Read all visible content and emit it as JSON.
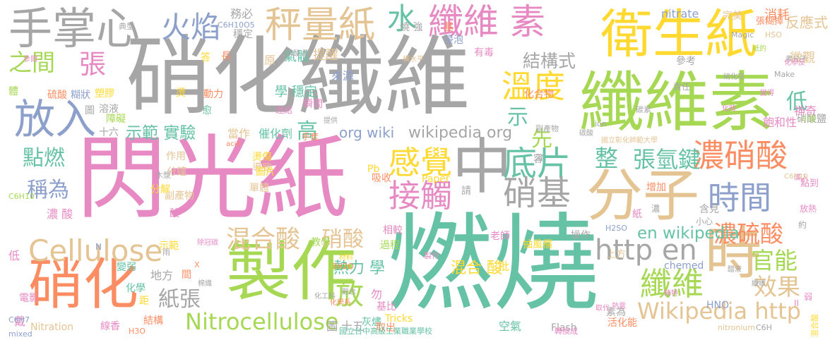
{
  "colors": {
    "gray": "#a6a6a6",
    "green": "#66c2a5",
    "orange": "#fc8d62",
    "blue": "#8da0cb",
    "pink": "#e78ac3",
    "lime": "#a6d854",
    "yellow": "#ffd92f",
    "tan": "#e5c494"
  },
  "words": [
    {
      "text": "閃光紙",
      "color": "pink"
    },
    {
      "text": "燃燒",
      "color": "green"
    },
    {
      "text": "硝化纖維",
      "color": "gray"
    },
    {
      "text": "纖維素",
      "color": "lime"
    },
    {
      "text": "製作",
      "color": "lime"
    },
    {
      "text": "分子",
      "color": "tan"
    },
    {
      "text": "中",
      "color": "gray"
    },
    {
      "text": "時",
      "color": "tan"
    },
    {
      "text": "衛生紙",
      "color": "yellow"
    },
    {
      "text": "硝化",
      "color": "orange"
    },
    {
      "text": "手掌心",
      "color": "gray"
    },
    {
      "text": "放入",
      "color": "blue"
    },
    {
      "text": "秤量紙",
      "color": "tan"
    },
    {
      "text": "火焰",
      "color": "blue"
    },
    {
      "text": "纖維 素",
      "color": "pink"
    },
    {
      "text": "水",
      "color": "green"
    },
    {
      "text": "Cellulose",
      "color": "tan"
    },
    {
      "text": "Nitrocellulose",
      "color": "lime"
    },
    {
      "text": "Wikipedia http",
      "color": "tan"
    },
    {
      "text": "濃硝酸",
      "color": "orange"
    },
    {
      "text": "時間",
      "color": "blue"
    },
    {
      "text": "感覺",
      "color": "yellow"
    },
    {
      "text": "接觸",
      "color": "pink"
    },
    {
      "text": "底片",
      "color": "green"
    },
    {
      "text": "溫度",
      "color": "yellow"
    },
    {
      "text": "纖維",
      "color": "lime"
    },
    {
      "text": "http en",
      "color": "gray"
    },
    {
      "text": "硝基",
      "color": "gray"
    },
    {
      "text": "混合酸",
      "color": "tan"
    },
    {
      "text": "濃硫酸",
      "color": "orange"
    },
    {
      "text": "效果",
      "color": "tan"
    },
    {
      "text": "官能",
      "color": "lime"
    },
    {
      "text": "張氫鍵",
      "color": "green"
    },
    {
      "text": "整",
      "color": "green"
    },
    {
      "text": "之間",
      "color": "lime"
    },
    {
      "text": "張",
      "color": "pink"
    },
    {
      "text": "結構式",
      "color": "gray"
    },
    {
      "text": "點燃",
      "color": "green"
    },
    {
      "text": "稱為",
      "color": "blue"
    },
    {
      "text": "放",
      "color": "lime"
    },
    {
      "text": "硝酸",
      "color": "tan"
    },
    {
      "text": "紙張",
      "color": "gray"
    },
    {
      "text": "en wikipedia",
      "color": "green"
    },
    {
      "text": "wikipedia org",
      "color": "gray"
    },
    {
      "text": "org wiki",
      "color": "blue"
    },
    {
      "text": "示範 實驗",
      "color": "green"
    },
    {
      "text": "高",
      "color": "green"
    },
    {
      "text": "先",
      "color": "lime"
    },
    {
      "text": "示",
      "color": "green"
    },
    {
      "text": "熱力 學",
      "color": "green"
    },
    {
      "text": "混合 酸",
      "color": "yellow"
    },
    {
      "text": "低",
      "color": "green"
    },
    {
      "text": "反應式",
      "color": "tan"
    },
    {
      "text": "微觀",
      "color": "tan"
    },
    {
      "text": "消耗",
      "color": "orange"
    },
    {
      "text": "完美",
      "color": "tan"
    },
    {
      "text": "nitrate",
      "color": "blue"
    },
    {
      "text": "務必",
      "color": "gray"
    },
    {
      "text": "氣體",
      "color": "green"
    },
    {
      "text": "提醒",
      "color": "tan"
    },
    {
      "text": "來源",
      "color": "blue"
    },
    {
      "text": "學 穩定",
      "color": "green"
    },
    {
      "text": "原",
      "color": "tan"
    },
    {
      "text": "有毒",
      "color": "pink"
    },
    {
      "text": "參考",
      "color": "gray"
    },
    {
      "text": "責任",
      "color": "gray"
    },
    {
      "text": "化合物",
      "color": "orange"
    },
    {
      "text": "當作",
      "color": "tan"
    },
    {
      "text": "催化劑",
      "color": "green"
    },
    {
      "text": "瞬間",
      "color": "pink"
    },
    {
      "text": "燙傷",
      "color": "yellow"
    },
    {
      "text": "導致",
      "color": "tan"
    },
    {
      "text": "圖片",
      "color": "yellow"
    },
    {
      "text": "吸收",
      "color": "orange"
    },
    {
      "text": "Paper",
      "color": "yellow"
    },
    {
      "text": "Pb",
      "color": "yellow"
    },
    {
      "text": "請",
      "color": "gray"
    },
    {
      "text": "老師",
      "color": "pink"
    },
    {
      "text": "相較",
      "color": "pink"
    },
    {
      "text": "過程",
      "color": "lime"
    },
    {
      "text": "教學",
      "color": "lime"
    },
    {
      "text": "抽風櫃",
      "color": "yellow"
    },
    {
      "text": "操作",
      "color": "gray"
    },
    {
      "text": "上方",
      "color": "tan"
    },
    {
      "text": "chemed",
      "color": "blue"
    },
    {
      "text": "HNO",
      "color": "blue"
    },
    {
      "text": "素為",
      "color": "gray"
    },
    {
      "text": "活化能",
      "color": "orange"
    },
    {
      "text": "空氣",
      "color": "green"
    },
    {
      "text": "Flash",
      "color": "gray"
    },
    {
      "text": "批",
      "color": "yellow"
    },
    {
      "text": "基比",
      "color": "pink"
    },
    {
      "text": "Tricks",
      "color": "yellow"
    },
    {
      "text": "灰燼",
      "color": "green"
    },
    {
      "text": "取出",
      "color": "orange"
    },
    {
      "text": "十五",
      "color": "gray"
    },
    {
      "text": "圖",
      "color": "gray"
    },
    {
      "text": "勿",
      "color": "pink"
    },
    {
      "text": "Nitration",
      "color": "tan"
    },
    {
      "text": "線香",
      "color": "pink"
    },
    {
      "text": "結構",
      "color": "orange"
    },
    {
      "text": "距",
      "color": "yellow"
    },
    {
      "text": "化學",
      "color": "green"
    },
    {
      "text": "地方",
      "color": "gray"
    },
    {
      "text": "間",
      "color": "orange"
    },
    {
      "text": "變弱",
      "color": "green"
    },
    {
      "text": "示範",
      "color": "yellow"
    },
    {
      "text": "單體",
      "color": "tan"
    },
    {
      "text": "分鐘",
      "color": "tan"
    },
    {
      "text": "作用",
      "color": "tan"
    },
    {
      "text": "副產物",
      "color": "tan"
    },
    {
      "text": "分解",
      "color": "yellow"
    },
    {
      "text": "酸",
      "color": "pink"
    },
    {
      "text": "溶液",
      "color": "gray"
    },
    {
      "text": "障礙",
      "color": "lime"
    },
    {
      "text": "十六",
      "color": "gray"
    },
    {
      "text": "圖",
      "color": "gray"
    },
    {
      "text": "硫酸",
      "color": "orange"
    },
    {
      "text": "糊狀",
      "color": "blue"
    },
    {
      "text": "塑膠",
      "color": "yellow"
    },
    {
      "text": "體",
      "color": "lime"
    },
    {
      "text": "動力",
      "color": "orange"
    },
    {
      "text": "燙",
      "color": "yellow"
    },
    {
      "text": "愈",
      "color": "green"
    },
    {
      "text": "答",
      "color": "yellow"
    },
    {
      "text": "長",
      "color": "orange"
    },
    {
      "text": "穩定",
      "color": "gray"
    },
    {
      "text": "燒 強",
      "color": "gray"
    },
    {
      "text": "基",
      "color": "orange"
    },
    {
      "text": "浸泡",
      "color": "blue"
    },
    {
      "text": "張糊掉",
      "color": "orange"
    },
    {
      "text": "神奇",
      "color": "pink"
    },
    {
      "text": "飽和性",
      "color": "pink"
    },
    {
      "text": "硝酸鹽",
      "color": "gray"
    },
    {
      "text": "點到",
      "color": "pink"
    },
    {
      "text": "放熱",
      "color": "pink"
    },
    {
      "text": "約",
      "color": "gray"
    },
    {
      "text": "增加",
      "color": "orange"
    },
    {
      "text": "含見",
      "color": "gray"
    },
    {
      "text": "小心",
      "color": "gray"
    },
    {
      "text": "紙",
      "color": "pink"
    },
    {
      "text": "濃",
      "color": "gray"
    },
    {
      "text": "容",
      "color": "gray"
    },
    {
      "text": "手套",
      "color": "orange"
    },
    {
      "text": "低",
      "color": "pink"
    },
    {
      "text": "電影",
      "color": "pink"
    },
    {
      "text": "濃 酸",
      "color": "pink"
    },
    {
      "text": "戴",
      "color": "pink"
    },
    {
      "text": "Make",
      "color": "gray"
    },
    {
      "text": "C6H10O5",
      "color": "blue"
    },
    {
      "text": "HSO",
      "color": "tan"
    },
    {
      "text": "Magic",
      "color": "gray"
    },
    {
      "text": "C6H7",
      "color": "blue"
    },
    {
      "text": "mixed",
      "color": "blue"
    },
    {
      "text": "C6H",
      "color": "gray"
    },
    {
      "text": "nitronium",
      "color": "tan"
    },
    {
      "text": "H2SO",
      "color": "blue"
    },
    {
      "text": "X",
      "color": "orange"
    },
    {
      "text": "II",
      "color": "pink"
    },
    {
      "text": "N",
      "color": "blue"
    },
    {
      "text": "弱",
      "color": "pink"
    },
    {
      "text": "雨",
      "color": "gray"
    },
    {
      "text": "典型",
      "color": "gray"
    },
    {
      "text": "國立台中高級工業職業學校",
      "color": "green"
    },
    {
      "text": "國立彰化師範大學",
      "color": "tan"
    },
    {
      "text": "轉換成",
      "color": "pink"
    },
    {
      "text": "化工科",
      "color": "gray"
    },
    {
      "text": "化學系",
      "color": "orange"
    },
    {
      "text": "觀念",
      "color": "gray"
    },
    {
      "text": "混合酸",
      "color": "yellow"
    },
    {
      "text": "材料",
      "color": "yellow"
    },
    {
      "text": "木漿",
      "color": "gray"
    },
    {
      "text": "H3O",
      "color": "orange"
    },
    {
      "text": "3H2O",
      "color": "orange"
    },
    {
      "text": "acid",
      "color": "orange"
    },
    {
      "text": "棉織",
      "color": "gray"
    },
    {
      "text": "製作",
      "color": "pink"
    },
    {
      "text": "硝酸 酸",
      "color": "gray"
    },
    {
      "text": "提供",
      "color": "gray"
    },
    {
      "text": "連結",
      "color": "pink"
    },
    {
      "text": "溶",
      "color": "gray"
    },
    {
      "text": "ion",
      "color": "gray"
    },
    {
      "text": "C6H10",
      "color": "lime"
    },
    {
      "text": "除冠碳",
      "color": "pink"
    },
    {
      "text": "副產物",
      "color": "gray"
    },
    {
      "text": "素分子",
      "color": "gray"
    },
    {
      "text": "化學反",
      "color": "pink"
    },
    {
      "text": "橫水平",
      "color": "tan"
    },
    {
      "text": "硝化吸",
      "color": "gray"
    },
    {
      "text": "紙的",
      "color": "lime"
    },
    {
      "text": "參閱",
      "color": "pink"
    },
    {
      "text": "變得",
      "color": "pink"
    },
    {
      "text": "陳特",
      "color": "pink"
    },
    {
      "text": "熱電",
      "color": "pink"
    },
    {
      "text": "小提",
      "color": "lime"
    },
    {
      "text": "化時",
      "color": "pink"
    },
    {
      "text": "取代",
      "color": "pink"
    },
    {
      "text": "醋液",
      "color": "gray"
    },
    {
      "text": "漢入",
      "color": "pink"
    },
    {
      "text": "碳素",
      "color": "gray"
    },
    {
      "text": "碳酸",
      "color": "gray"
    },
    {
      "text": "纖維",
      "color": "gray"
    },
    {
      "text": "C6H10",
      "color": "tan"
    },
    {
      "text": "消失",
      "color": "gray"
    },
    {
      "text": "纖維素",
      "color": "gray"
    }
  ]
}
